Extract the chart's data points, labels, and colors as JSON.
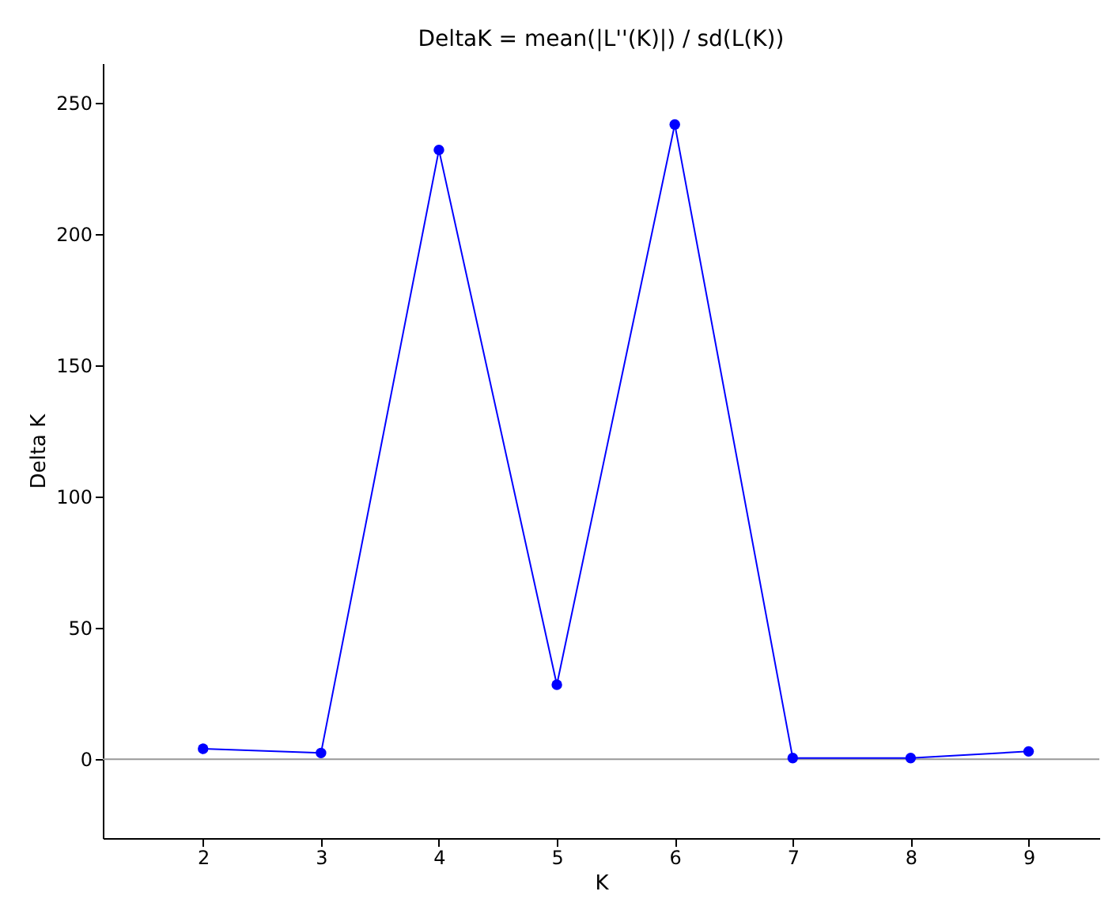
{
  "chart_data": {
    "type": "line",
    "title": "DeltaK = mean(|L''(K)|) / sd(L(K))",
    "xlabel": "K",
    "ylabel": "Delta K",
    "x": [
      2,
      3,
      4,
      5,
      6,
      7,
      8,
      9
    ],
    "series": [
      {
        "color": "#0000ff",
        "values": [
          4,
          2.4,
          232,
          28.4,
          241.7,
          0.5,
          0.5,
          3
        ]
      }
    ],
    "xlim": [
      1.15,
      9.6
    ],
    "xticks": [
      2,
      3,
      4,
      5,
      6,
      7,
      8,
      9
    ],
    "ylim": [
      -30,
      265
    ],
    "yticks": [
      0,
      50,
      100,
      150,
      200,
      250
    ],
    "ref_lines": [
      {
        "axis": "y",
        "value": 0,
        "color": "#999999"
      }
    ],
    "marker": "circle",
    "line_style": "solid",
    "grid": false
  }
}
